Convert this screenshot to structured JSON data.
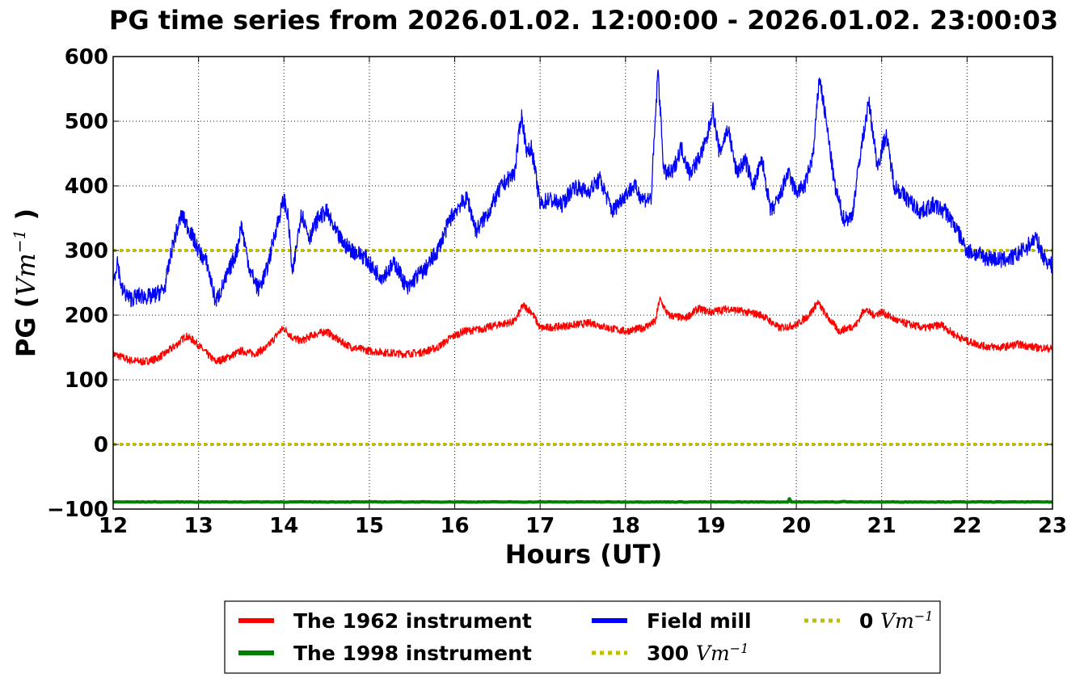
{
  "chart_data": {
    "type": "line",
    "title": "PG time series from 2026.01.02. 12:00:00 - 2026.01.02. 23:00:03",
    "xlabel": "Hours (UT)",
    "ylabel": {
      "prefix": "PG (",
      "unit_base": "Vm",
      "unit_exp": "−1",
      "suffix": " )"
    },
    "xlim": [
      12,
      23
    ],
    "ylim": [
      -100,
      600
    ],
    "xticks": [
      "12",
      "13",
      "14",
      "15",
      "16",
      "17",
      "18",
      "19",
      "20",
      "21",
      "22",
      "23"
    ],
    "yticks": [
      "600",
      "500",
      "400",
      "300",
      "200",
      "100",
      "0",
      "−100"
    ],
    "grid": true,
    "legend_position": "bottom-center, below plot, 3 columns",
    "series": [
      {
        "name": "The 1962 instrument",
        "color": "#ff0000",
        "x": [
          12.0,
          12.1,
          12.2,
          12.35,
          12.5,
          12.6,
          12.75,
          12.85,
          12.95,
          13.1,
          13.2,
          13.35,
          13.5,
          13.65,
          13.8,
          13.95,
          14.0,
          14.1,
          14.2,
          14.35,
          14.5,
          14.65,
          14.8,
          15.0,
          15.2,
          15.4,
          15.6,
          15.8,
          15.95,
          16.1,
          16.3,
          16.5,
          16.7,
          16.8,
          16.9,
          17.0,
          17.2,
          17.4,
          17.6,
          17.8,
          18.0,
          18.2,
          18.35,
          18.4,
          18.5,
          18.7,
          18.85,
          19.0,
          19.2,
          19.4,
          19.6,
          19.8,
          20.0,
          20.15,
          20.25,
          20.35,
          20.5,
          20.7,
          20.8,
          20.9,
          21.0,
          21.2,
          21.5,
          21.7,
          21.85,
          22.0,
          22.2,
          22.4,
          22.6,
          22.8,
          23.0
        ],
        "y": [
          140,
          135,
          130,
          128,
          132,
          140,
          155,
          168,
          160,
          140,
          128,
          135,
          145,
          140,
          150,
          175,
          180,
          165,
          160,
          170,
          175,
          160,
          150,
          145,
          142,
          140,
          142,
          150,
          165,
          175,
          178,
          185,
          190,
          215,
          205,
          180,
          182,
          185,
          188,
          180,
          175,
          180,
          190,
          225,
          200,
          195,
          210,
          205,
          210,
          205,
          200,
          180,
          185,
          200,
          220,
          200,
          175,
          185,
          210,
          200,
          205,
          190,
          180,
          185,
          170,
          160,
          152,
          150,
          155,
          150,
          148
        ]
      },
      {
        "name": "The 1998 instrument",
        "color": "#008000",
        "x": [
          12.0,
          13.0,
          14.0,
          15.0,
          16.0,
          17.0,
          18.0,
          19.0,
          19.9,
          19.92,
          19.94,
          20.0,
          20.5,
          20.55,
          20.6,
          21.0,
          22.0,
          23.0
        ],
        "y": [
          -89,
          -89,
          -89,
          -89,
          -89,
          -89,
          -89,
          -89,
          -89,
          -84,
          -89,
          -89,
          -89,
          -88,
          -89,
          -89,
          -89,
          -89
        ]
      },
      {
        "name": "Field mill",
        "color": "#0000ff",
        "x": [
          12.0,
          12.05,
          12.1,
          12.2,
          12.3,
          12.45,
          12.6,
          12.7,
          12.8,
          12.9,
          13.0,
          13.1,
          13.2,
          13.3,
          13.45,
          13.5,
          13.6,
          13.7,
          13.8,
          13.9,
          14.0,
          14.05,
          14.1,
          14.2,
          14.3,
          14.4,
          14.5,
          14.6,
          14.7,
          14.8,
          14.95,
          15.05,
          15.15,
          15.3,
          15.45,
          15.55,
          15.65,
          15.8,
          15.95,
          16.05,
          16.15,
          16.25,
          16.4,
          16.55,
          16.7,
          16.78,
          16.85,
          16.9,
          17.0,
          17.1,
          17.25,
          17.4,
          17.55,
          17.7,
          17.85,
          17.95,
          18.1,
          18.2,
          18.3,
          18.38,
          18.45,
          18.55,
          18.65,
          18.75,
          18.85,
          18.95,
          19.02,
          19.1,
          19.2,
          19.3,
          19.4,
          19.5,
          19.6,
          19.7,
          19.8,
          19.9,
          20.0,
          20.1,
          20.2,
          20.27,
          20.35,
          20.45,
          20.55,
          20.65,
          20.75,
          20.85,
          20.95,
          21.05,
          21.15,
          21.3,
          21.45,
          21.6,
          21.75,
          21.85,
          22.0,
          22.2,
          22.4,
          22.55,
          22.7,
          22.8,
          22.9,
          23.0
        ],
        "y": [
          250,
          285,
          240,
          225,
          230,
          228,
          240,
          310,
          355,
          330,
          300,
          280,
          220,
          250,
          300,
          340,
          270,
          240,
          270,
          330,
          380,
          350,
          260,
          360,
          320,
          350,
          360,
          330,
          310,
          300,
          290,
          270,
          260,
          280,
          240,
          260,
          270,
          300,
          350,
          370,
          380,
          330,
          360,
          400,
          420,
          510,
          450,
          460,
          370,
          380,
          370,
          400,
          390,
          410,
          360,
          380,
          400,
          380,
          380,
          580,
          420,
          420,
          460,
          420,
          440,
          470,
          520,
          450,
          490,
          420,
          440,
          400,
          440,
          360,
          380,
          420,
          390,
          400,
          450,
          570,
          500,
          400,
          350,
          350,
          450,
          530,
          430,
          480,
          400,
          380,
          360,
          370,
          360,
          340,
          300,
          290,
          285,
          290,
          305,
          320,
          290,
          275
        ]
      },
      {
        "name": "300 Vm−1",
        "color": "#bfbf00",
        "x": [
          12,
          23
        ],
        "y": [
          300,
          300
        ]
      },
      {
        "name": "0 Vm−1",
        "color": "#bfbf00",
        "x": [
          12,
          23
        ],
        "y": [
          0,
          0
        ]
      }
    ],
    "legend": [
      {
        "id": "s1962",
        "prefix": "The 1962 instrument",
        "unit_base": "",
        "unit_exp": "",
        "style": "solid",
        "color": "#ff0000"
      },
      {
        "id": "s1998",
        "prefix": "The 1998 instrument",
        "unit_base": "",
        "unit_exp": "",
        "style": "solid",
        "color": "#008000"
      },
      {
        "id": "mill",
        "prefix": "Field mill",
        "unit_base": "",
        "unit_exp": "",
        "style": "solid",
        "color": "#0000ff"
      },
      {
        "id": "h300",
        "prefix": "300 ",
        "unit_base": "Vm",
        "unit_exp": "−1",
        "style": "dotted",
        "color": "#bfbf00"
      },
      {
        "id": "h0",
        "prefix": "0 ",
        "unit_base": "Vm",
        "unit_exp": "−1",
        "style": "dotted",
        "color": "#bfbf00"
      }
    ]
  }
}
